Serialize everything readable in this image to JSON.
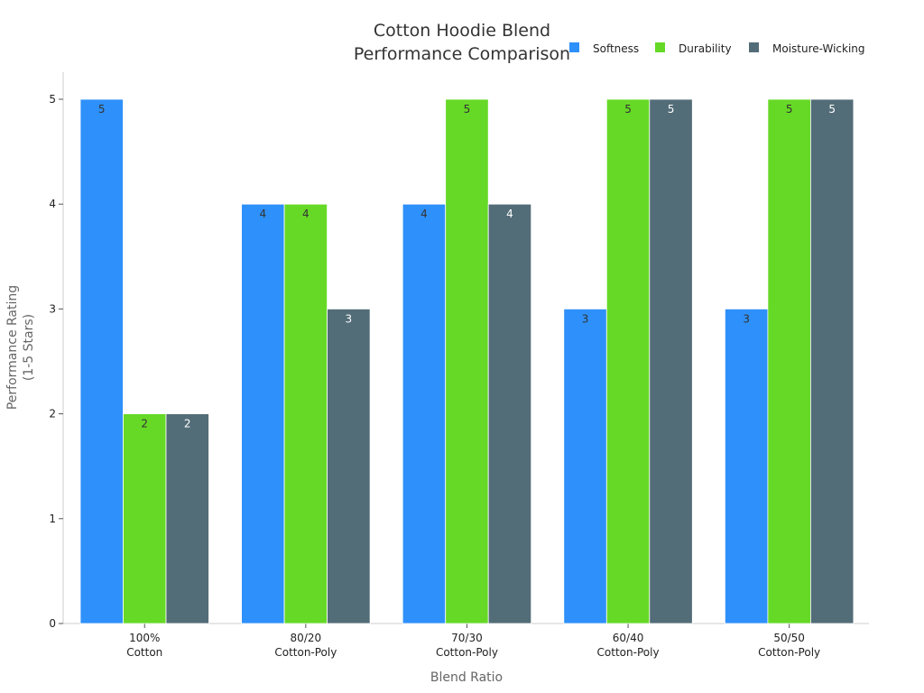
{
  "chart_data": {
    "type": "bar",
    "title_lines": [
      "Cotton Hoodie Blend",
      "Performance Comparison"
    ],
    "xlabel": "Blend Ratio",
    "ylabel_lines": [
      "Performance Rating",
      "(1-5 Stars)"
    ],
    "categories": [
      [
        "100%",
        "Cotton"
      ],
      [
        "80/20",
        "Cotton-Poly"
      ],
      [
        "70/30",
        "Cotton-Poly"
      ],
      [
        "60/40",
        "Cotton-Poly"
      ],
      [
        "50/50",
        "Cotton-Poly"
      ]
    ],
    "series": [
      {
        "name": "Softness",
        "values": [
          5,
          4,
          4,
          3,
          3
        ],
        "color": "#2e90fa",
        "label_color": "#333333"
      },
      {
        "name": "Durability",
        "values": [
          2,
          4,
          5,
          5,
          5
        ],
        "color": "#66d926",
        "label_color": "#333333"
      },
      {
        "name": "Moisture-Wicking",
        "values": [
          2,
          3,
          4,
          5,
          5
        ],
        "color": "#536d78",
        "label_color": "#ffffff"
      }
    ],
    "ylim": [
      0,
      5
    ],
    "yticks": [
      0,
      1,
      2,
      3,
      4,
      5
    ],
    "grid": false,
    "legend_position": "top-right"
  }
}
